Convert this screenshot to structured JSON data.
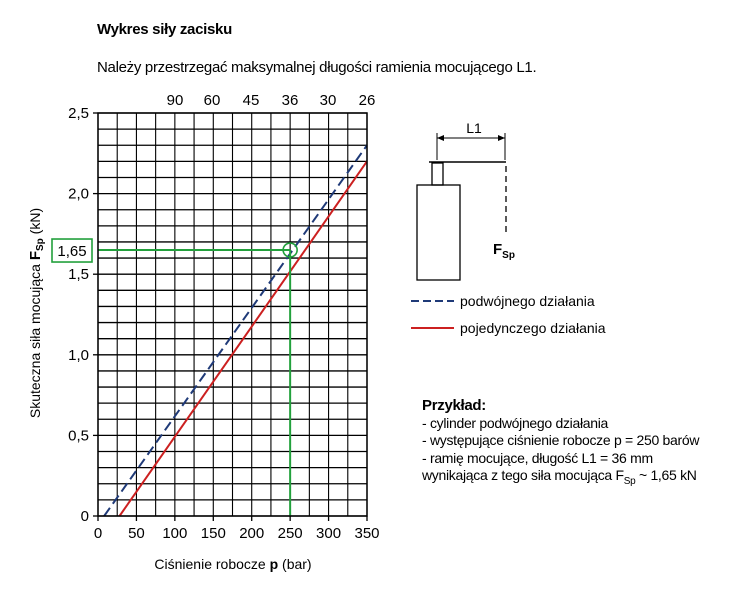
{
  "header": {
    "title": "Wykres siły zacisku",
    "note": "Należy przestrzegać maksymalnej długości ramienia mocującego L1."
  },
  "chart_data": {
    "type": "line",
    "xlabel_prefix": "Ciśnienie robocze ",
    "xlabel_bold": "p",
    "xlabel_suffix": " (bar)",
    "ylabel_prefix": "Skuteczna siła mocująca ",
    "ylabel_bold": "F",
    "ylabel_sub": "Sp",
    "ylabel_suffix": " (kN)",
    "xlim": [
      0,
      350
    ],
    "ylim": [
      0,
      2.5
    ],
    "x_ticks": [
      0,
      50,
      100,
      150,
      200,
      250,
      300,
      350
    ],
    "x_tick_labels": [
      "0",
      "50",
      "100",
      "150",
      "200",
      "250",
      "300",
      "350"
    ],
    "y_ticks": [
      0,
      0.5,
      1.0,
      1.5,
      2.0,
      2.5
    ],
    "y_tick_labels": [
      "0",
      "0,5",
      "1,0",
      "1,5",
      "2,0",
      "2,5"
    ],
    "top_axis_values": [
      "90",
      "60",
      "45",
      "36",
      "30",
      "26"
    ],
    "grid": true,
    "series": [
      {
        "name": "podwójnego działania",
        "style": "dashed",
        "color": "#1f3a78",
        "x": [
          8,
          350
        ],
        "y": [
          0,
          2.3
        ]
      },
      {
        "name": "pojedynczego działania",
        "style": "solid",
        "color": "#cc2020",
        "x": [
          28,
          350
        ],
        "y": [
          0,
          2.2
        ]
      }
    ],
    "annotation": {
      "x": 250,
      "y": 1.65,
      "label": "1,65",
      "color": "#22a03c"
    }
  },
  "diagram": {
    "dimension_label": "L1",
    "force_label": "F",
    "force_sub": "Sp"
  },
  "example": {
    "heading": "Przykład:",
    "line1": "- cylinder podwójnego działania",
    "line2": "- występujące ciśnienie robocze p = 250 barów",
    "line3": "- ramię mocujące, długość L1 = 36 mm",
    "line4_prefix": "wynikająca z tego siła mocująca F",
    "line4_sub": "Sp",
    "line4_suffix": " ~ 1,65 kN"
  }
}
